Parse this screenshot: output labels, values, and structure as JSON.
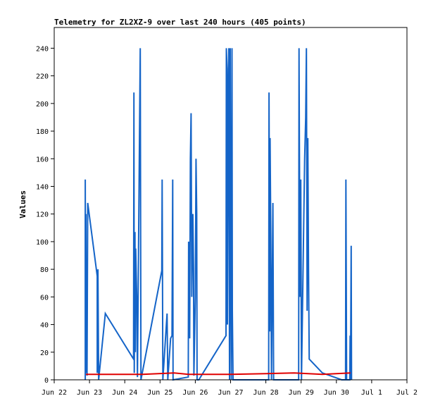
{
  "chart_data": {
    "type": "line",
    "title": "Telemetry for ZL2XZ-9 over last 240 hours (405 points)",
    "xlabel": "",
    "ylabel": "Values",
    "x_ticks": [
      "Jun 22",
      "Jun 23",
      "Jun 24",
      "Jun 25",
      "Jun 26",
      "Jun 27",
      "Jun 28",
      "Jun 29",
      "Jun 30",
      "Jul 1",
      "Jul 2"
    ],
    "y_ticks": [
      0,
      20,
      40,
      60,
      80,
      100,
      120,
      140,
      160,
      180,
      200,
      220,
      240
    ],
    "xlim_days": [
      0,
      10
    ],
    "ylim": [
      0,
      255
    ],
    "grid": false,
    "series": [
      {
        "color": "#1464c8",
        "points": [
          [
            0.88,
            0
          ],
          [
            0.88,
            145
          ],
          [
            0.89,
            5
          ],
          [
            0.9,
            120
          ],
          [
            0.91,
            20
          ],
          [
            0.92,
            72
          ],
          [
            0.93,
            3
          ],
          [
            0.95,
            128
          ],
          [
            1.22,
            75
          ],
          [
            1.22,
            5
          ],
          [
            1.24,
            80
          ],
          [
            1.26,
            0
          ],
          [
            1.45,
            48
          ],
          [
            2.25,
            15
          ],
          [
            2.26,
            208
          ],
          [
            2.27,
            5
          ],
          [
            2.29,
            107
          ],
          [
            2.3,
            20
          ],
          [
            2.31,
            95
          ],
          [
            2.34,
            60
          ],
          [
            2.36,
            2
          ],
          [
            2.44,
            240
          ],
          [
            2.46,
            0
          ],
          [
            3.05,
            79
          ],
          [
            3.06,
            145
          ],
          [
            3.08,
            0
          ],
          [
            3.2,
            48
          ],
          [
            3.22,
            0
          ],
          [
            3.3,
            30
          ],
          [
            3.34,
            32
          ],
          [
            3.36,
            145
          ],
          [
            3.37,
            0
          ],
          [
            3.8,
            2
          ],
          [
            3.81,
            100
          ],
          [
            3.84,
            30
          ],
          [
            3.86,
            160
          ],
          [
            3.88,
            193
          ],
          [
            3.9,
            60
          ],
          [
            3.93,
            120
          ],
          [
            3.95,
            80
          ],
          [
            3.96,
            3
          ],
          [
            4.0,
            60
          ],
          [
            4.02,
            160
          ],
          [
            4.04,
            120
          ],
          [
            4.05,
            0
          ],
          [
            4.1,
            0
          ],
          [
            4.87,
            32
          ],
          [
            4.88,
            240
          ],
          [
            4.9,
            225
          ],
          [
            4.91,
            40
          ],
          [
            4.93,
            200
          ],
          [
            4.95,
            240
          ],
          [
            4.97,
            0
          ],
          [
            4.99,
            240
          ],
          [
            5.0,
            128
          ],
          [
            5.02,
            0
          ],
          [
            5.04,
            240
          ],
          [
            5.05,
            50
          ],
          [
            5.07,
            0
          ],
          [
            6.08,
            0
          ],
          [
            6.09,
            208
          ],
          [
            6.11,
            35
          ],
          [
            6.12,
            175
          ],
          [
            6.14,
            105
          ],
          [
            6.16,
            0
          ],
          [
            6.2,
            128
          ],
          [
            6.22,
            0
          ],
          [
            6.93,
            0
          ],
          [
            6.94,
            240
          ],
          [
            6.95,
            175
          ],
          [
            6.97,
            60
          ],
          [
            6.99,
            145
          ],
          [
            7.01,
            0
          ],
          [
            7.1,
            160
          ],
          [
            7.13,
            190
          ],
          [
            7.15,
            240
          ],
          [
            7.17,
            50
          ],
          [
            7.19,
            175
          ],
          [
            7.21,
            80
          ],
          [
            7.23,
            15
          ],
          [
            7.6,
            5
          ],
          [
            8.15,
            0
          ],
          [
            8.26,
            0
          ],
          [
            8.27,
            145
          ],
          [
            8.29,
            0
          ],
          [
            8.38,
            0
          ],
          [
            8.39,
            32
          ],
          [
            8.4,
            0
          ],
          [
            8.42,
            97
          ],
          [
            8.43,
            0
          ]
        ]
      },
      {
        "color": "#e00000",
        "points": [
          [
            0.9,
            4
          ],
          [
            1.5,
            4
          ],
          [
            2.5,
            4
          ],
          [
            3.4,
            5
          ],
          [
            3.8,
            4
          ],
          [
            5.0,
            4
          ],
          [
            6.0,
            4.5
          ],
          [
            6.8,
            5
          ],
          [
            7.6,
            4
          ],
          [
            8.4,
            5
          ]
        ]
      }
    ]
  }
}
